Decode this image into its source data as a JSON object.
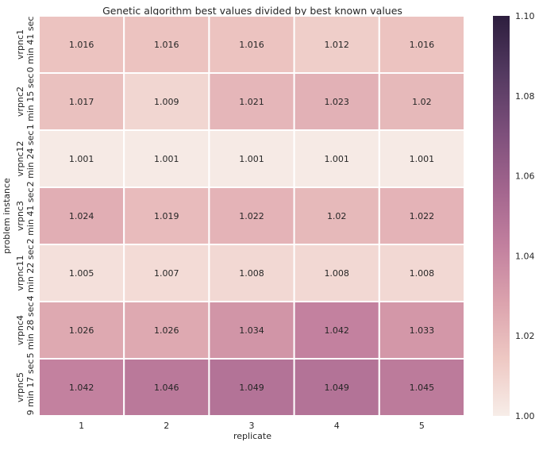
{
  "chart_data": {
    "type": "heatmap",
    "title": "Genetic algorithm best values divided by best known values",
    "xlabel": "replicate",
    "ylabel": "problem instance",
    "x_categories": [
      "1",
      "2",
      "3",
      "4",
      "5"
    ],
    "y_categories": [
      [
        "vrpnc1",
        "0 min 41 sec"
      ],
      [
        "vrpnc2",
        "1 min 15 sec"
      ],
      [
        "vrpnc12",
        "2 min 24 sec"
      ],
      [
        "vrpnc3",
        "2 min 41 sec"
      ],
      [
        "vrpnc11",
        "4 min 22 sec"
      ],
      [
        "vrpnc4",
        "5 min 28 sec"
      ],
      [
        "vrpnc5",
        "9 min 17 sec"
      ]
    ],
    "values": [
      [
        1.016,
        1.016,
        1.016,
        1.012,
        1.016
      ],
      [
        1.017,
        1.009,
        1.021,
        1.023,
        1.02
      ],
      [
        1.001,
        1.001,
        1.001,
        1.001,
        1.001
      ],
      [
        1.024,
        1.019,
        1.022,
        1.02,
        1.022
      ],
      [
        1.005,
        1.007,
        1.008,
        1.008,
        1.008
      ],
      [
        1.026,
        1.026,
        1.034,
        1.042,
        1.033
      ],
      [
        1.042,
        1.046,
        1.049,
        1.049,
        1.045
      ]
    ],
    "value_labels": [
      [
        "1.016",
        "1.016",
        "1.016",
        "1.012",
        "1.016"
      ],
      [
        "1.017",
        "1.009",
        "1.021",
        "1.023",
        "1.02"
      ],
      [
        "1.001",
        "1.001",
        "1.001",
        "1.001",
        "1.001"
      ],
      [
        "1.024",
        "1.019",
        "1.022",
        "1.02",
        "1.022"
      ],
      [
        "1.005",
        "1.007",
        "1.008",
        "1.008",
        "1.008"
      ],
      [
        "1.026",
        "1.026",
        "1.034",
        "1.042",
        "1.033"
      ],
      [
        "1.042",
        "1.046",
        "1.049",
        "1.049",
        "1.045"
      ]
    ],
    "colorbar": {
      "vmin": 1.0,
      "vmax": 1.1,
      "ticks": [
        1.0,
        1.02,
        1.04,
        1.06,
        1.08,
        1.1
      ],
      "tick_labels": [
        "1.00",
        "1.02",
        "1.04",
        "1.06",
        "1.08",
        "1.10"
      ],
      "colors": [
        "#f7ede8",
        "#eec8c3",
        "#dba2ad",
        "#c17f9e",
        "#a1648d",
        "#7b4e7a",
        "#533960",
        "#2d1e3e"
      ]
    },
    "grid": false
  }
}
